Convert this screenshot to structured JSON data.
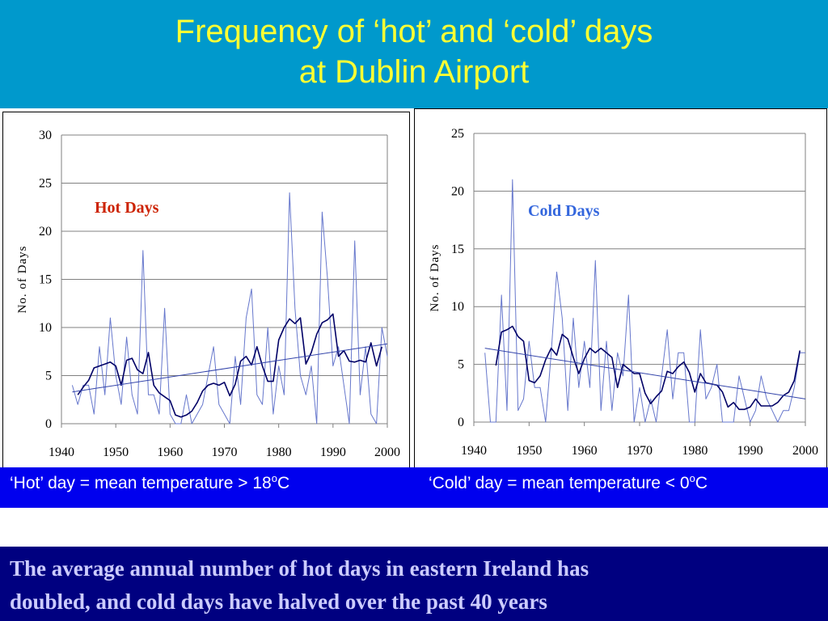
{
  "title": {
    "line1": "Frequency of ‘hot’ and ‘cold’ days",
    "line2": "at Dublin Airport"
  },
  "definitions": {
    "hot_prefix": "‘Hot’ day = mean temperature > 18",
    "hot_sup": "o",
    "hot_suffix": "C",
    "cold_prefix": "‘Cold’ day = mean temperature < 0",
    "cold_sup": "o",
    "cold_suffix": "C"
  },
  "summary": {
    "line1": "The average annual number of hot days in eastern Ireland has",
    "line2": "doubled, and cold days have halved over the past 40 years"
  },
  "colors": {
    "header_bg": "#0099cc",
    "title_text": "#ffff33",
    "definition_bar": "#0000ee",
    "summary_bg": "#000080",
    "summary_text": "#ccccff",
    "hot_label": "#cc2200",
    "cold_label": "#3366dd",
    "annual_line": "#6677cc",
    "smoothed_line": "#000066",
    "trend_line": "#3344aa"
  },
  "chart_data": [
    {
      "type": "line",
      "annotation": "Hot Days",
      "xlabel": "",
      "ylabel": "No. of Days",
      "xlim": [
        1940,
        2000
      ],
      "ylim": [
        0,
        30
      ],
      "xticks": [
        1940,
        1950,
        1960,
        1970,
        1980,
        1990,
        2000
      ],
      "yticks": [
        0,
        5,
        10,
        15,
        20,
        25,
        30
      ],
      "grid": true,
      "series": [
        {
          "role": "annual",
          "x": [
            1942,
            1943,
            1944,
            1945,
            1946,
            1947,
            1948,
            1949,
            1950,
            1951,
            1952,
            1953,
            1954,
            1955,
            1956,
            1957,
            1958,
            1959,
            1960,
            1961,
            1962,
            1963,
            1964,
            1965,
            1966,
            1967,
            1968,
            1969,
            1970,
            1971,
            1972,
            1973,
            1974,
            1975,
            1976,
            1977,
            1978,
            1979,
            1980,
            1981,
            1982,
            1983,
            1984,
            1985,
            1986,
            1987,
            1988,
            1989,
            1990,
            1991,
            1992,
            1993,
            1994,
            1995,
            1996,
            1997,
            1998,
            1999,
            2000
          ],
          "values": [
            4,
            2,
            4,
            4,
            1,
            8,
            3,
            11,
            5,
            2,
            9,
            3,
            1,
            18,
            3,
            3,
            1,
            12,
            1,
            0,
            0,
            3,
            0,
            1,
            2,
            5,
            8,
            2,
            1,
            0,
            7,
            2,
            11,
            14,
            3,
            2,
            10,
            1,
            6,
            3,
            24,
            12,
            5,
            3,
            6,
            0,
            22,
            15,
            6,
            8,
            4,
            0,
            19,
            3,
            8,
            1,
            0,
            10,
            7
          ]
        },
        {
          "role": "smoothed",
          "x": [
            1943,
            1944,
            1945,
            1946,
            1947,
            1948,
            1949,
            1950,
            1951,
            1952,
            1953,
            1954,
            1955,
            1956,
            1957,
            1958,
            1959,
            1960,
            1961,
            1962,
            1963,
            1964,
            1965,
            1966,
            1967,
            1968,
            1969,
            1970,
            1971,
            1972,
            1973,
            1974,
            1975,
            1976,
            1977,
            1978,
            1979,
            1980,
            1981,
            1982,
            1983,
            1984,
            1985,
            1986,
            1987,
            1988,
            1989,
            1990,
            1991,
            1992,
            1993,
            1994,
            1995,
            1996,
            1997,
            1998,
            1999
          ],
          "values": [
            3,
            3.8,
            4.5,
            5.8,
            6,
            6.2,
            6.4,
            6,
            4,
            6.6,
            6.8,
            5.6,
            5.2,
            7.4,
            4,
            3.2,
            2.8,
            2.4,
            0.9,
            0.7,
            0.9,
            1.3,
            2.2,
            3.4,
            4,
            4.2,
            4,
            4.3,
            2.9,
            4.1,
            6.5,
            7,
            6.1,
            8,
            6,
            4.4,
            4.4,
            8.7,
            10,
            10.9,
            10.4,
            11,
            6.2,
            7.4,
            9.3,
            10.5,
            10.8,
            11.4,
            7,
            7.6,
            6.5,
            6.4,
            6.6,
            6.4,
            8.4,
            6,
            8
          ]
        },
        {
          "role": "trend",
          "x": [
            1942,
            2000
          ],
          "values": [
            3.3,
            8.3
          ]
        }
      ]
    },
    {
      "type": "line",
      "annotation": "Cold Days",
      "xlabel": "",
      "ylabel": "No. of Days",
      "xlim": [
        1940,
        2000
      ],
      "ylim": [
        0,
        25
      ],
      "xticks": [
        1940,
        1950,
        1960,
        1970,
        1980,
        1990,
        2000
      ],
      "yticks": [
        0,
        5,
        10,
        15,
        20,
        25
      ],
      "grid": true,
      "series": [
        {
          "role": "annual",
          "x": [
            1942,
            1943,
            1944,
            1945,
            1946,
            1947,
            1948,
            1949,
            1950,
            1951,
            1952,
            1953,
            1954,
            1955,
            1956,
            1957,
            1958,
            1959,
            1960,
            1961,
            1962,
            1963,
            1964,
            1965,
            1966,
            1967,
            1968,
            1969,
            1970,
            1971,
            1972,
            1973,
            1974,
            1975,
            1976,
            1977,
            1978,
            1979,
            1980,
            1981,
            1982,
            1983,
            1984,
            1985,
            1986,
            1987,
            1988,
            1989,
            1990,
            1991,
            1992,
            1993,
            1994,
            1995,
            1996,
            1997,
            1998,
            1999,
            2000
          ],
          "values": [
            6,
            0,
            0,
            11,
            1,
            21,
            1,
            2,
            7,
            3,
            3,
            0,
            6,
            13,
            9,
            1,
            9,
            3,
            7,
            3,
            14,
            1,
            7,
            1,
            6,
            4,
            11,
            0,
            3,
            0,
            2,
            0,
            4,
            8,
            2,
            6,
            6,
            0,
            0,
            8,
            2,
            3,
            5,
            0,
            0,
            0,
            4,
            2,
            0,
            1,
            4,
            2,
            1,
            0,
            1,
            1,
            3,
            6,
            6
          ]
        },
        {
          "role": "smoothed",
          "x": [
            1944,
            1945,
            1946,
            1947,
            1948,
            1949,
            1950,
            1951,
            1952,
            1953,
            1954,
            1955,
            1956,
            1957,
            1958,
            1959,
            1960,
            1961,
            1962,
            1963,
            1964,
            1965,
            1966,
            1967,
            1968,
            1969,
            1970,
            1971,
            1972,
            1973,
            1974,
            1975,
            1976,
            1977,
            1978,
            1979,
            1980,
            1981,
            1982,
            1983,
            1984,
            1985,
            1986,
            1987,
            1988,
            1989,
            1990,
            1991,
            1992,
            1993,
            1994,
            1995,
            1996,
            1997,
            1998,
            1999
          ],
          "values": [
            4.9,
            7.8,
            8,
            8.3,
            7.4,
            7,
            3.6,
            3.4,
            4,
            5.4,
            6.4,
            5.8,
            7.6,
            7.2,
            5.6,
            4.2,
            5.5,
            6.4,
            6,
            6.4,
            6,
            5.6,
            3,
            5,
            4.6,
            4.2,
            4.2,
            2.5,
            1.6,
            2.2,
            2.7,
            4.4,
            4.2,
            4.8,
            5.2,
            4.3,
            2.6,
            4.2,
            3.4,
            3.3,
            3.2,
            2.6,
            1.3,
            1.7,
            1.1,
            1.1,
            1.3,
            2,
            1.4,
            1.4,
            1.4,
            1.7,
            2.3,
            2.6,
            3.6,
            6.2
          ]
        },
        {
          "role": "trend",
          "x": [
            1942,
            2000
          ],
          "values": [
            6.4,
            2.0
          ]
        }
      ]
    }
  ]
}
